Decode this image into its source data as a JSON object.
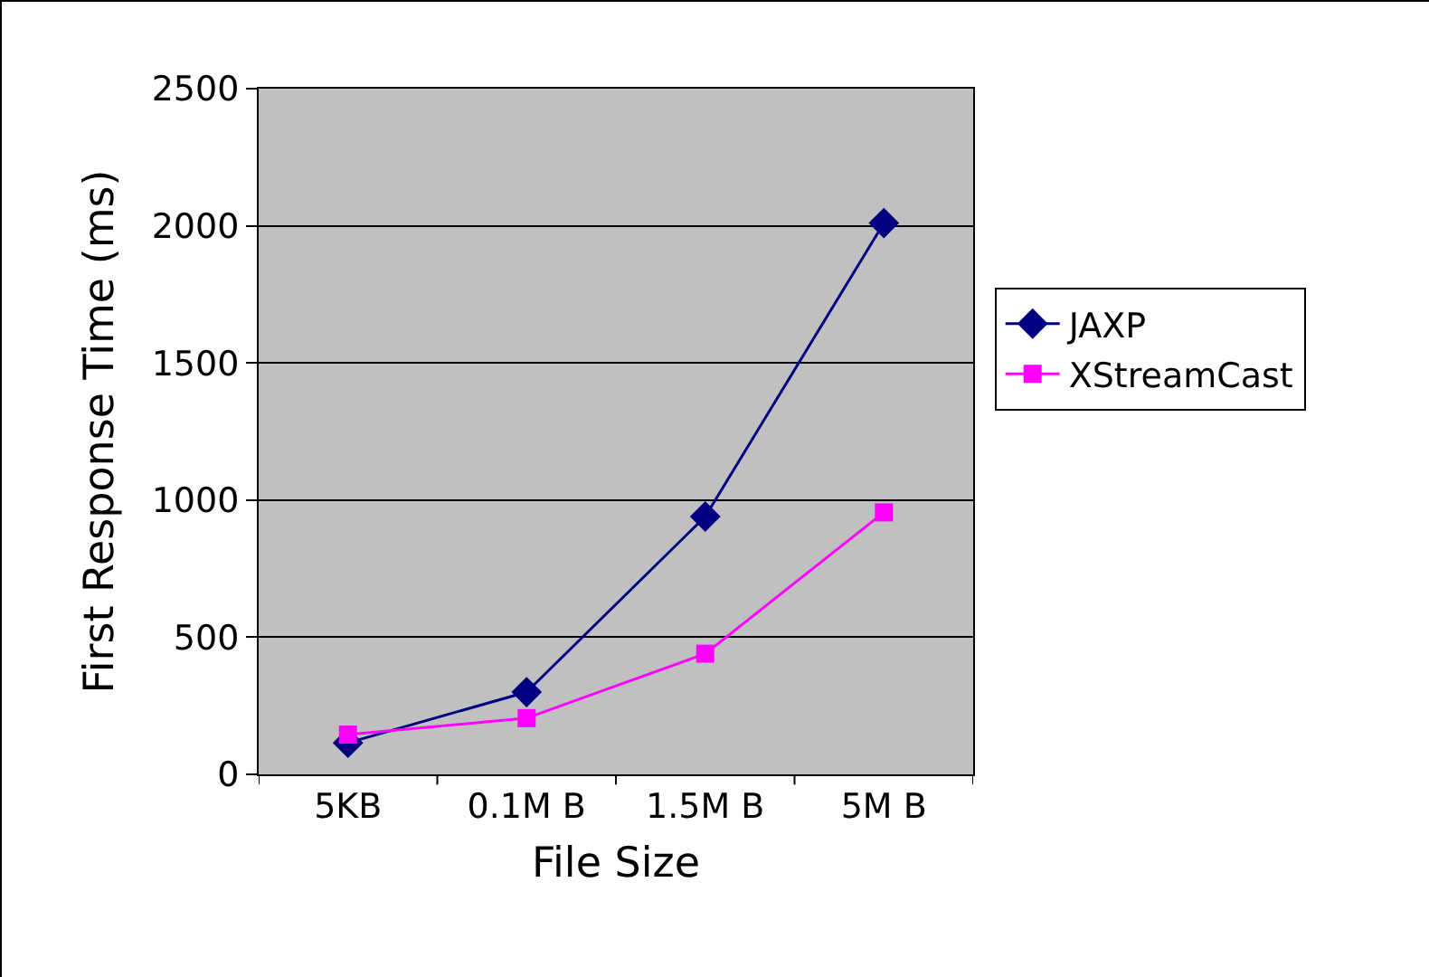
{
  "chart_data": {
    "type": "line",
    "xlabel": "File Size",
    "ylabel": "First Response Time (ms)",
    "categories": [
      "5KB",
      "0.1M B",
      "1.5M B",
      "5M B"
    ],
    "series": [
      {
        "name": "JAXP",
        "color": "#000080",
        "values": [
          115,
          300,
          940,
          2010
        ],
        "marker": "diamond"
      },
      {
        "name": "XStreamCast",
        "color": "#ff00ff",
        "values": [
          145,
          205,
          440,
          955
        ],
        "marker": "square"
      }
    ],
    "ylim": [
      0,
      2500
    ],
    "yticks": [
      0,
      500,
      1000,
      1500,
      2000,
      2500
    ],
    "grid": "y",
    "legend": "right",
    "line_style": "solid"
  }
}
